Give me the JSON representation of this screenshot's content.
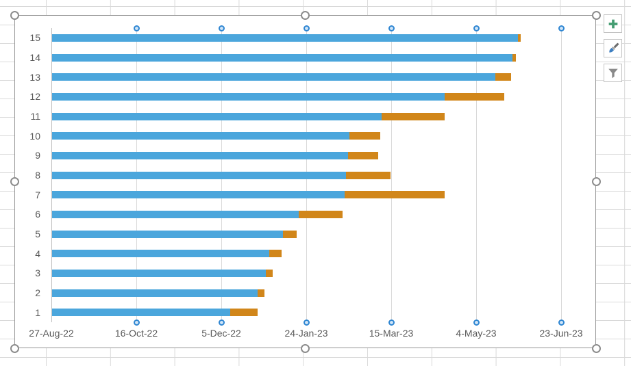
{
  "state": {
    "chart_selected": true,
    "gridlines_selected": true
  },
  "chart_tools": {
    "buttons": [
      {
        "id": "chart-elements",
        "icon": "plus-icon",
        "icon_color": "#459D72"
      },
      {
        "id": "chart-styles",
        "icon": "paintbrush-icon",
        "icon_color": "#6d6d6d"
      },
      {
        "id": "chart-filters",
        "icon": "funnel-icon",
        "icon_color": "#8a8a8a"
      }
    ]
  },
  "colors": {
    "bar_blue": "#4BA6DC",
    "bar_orange": "#D1861A",
    "axis_text": "#595959",
    "gridline": "#D9D9D9",
    "axis_line": "#BFBFBF",
    "gridline_handle_ring": "#2E86D2"
  },
  "chart_data": {
    "type": "bar",
    "orientation": "horizontal",
    "stacked": true,
    "title": "",
    "legend": "none",
    "gridlines": "vertical-major",
    "categories": [
      "1",
      "2",
      "3",
      "4",
      "5",
      "6",
      "7",
      "8",
      "9",
      "10",
      "11",
      "12",
      "13",
      "14",
      "15"
    ],
    "category_order": "category 1 at bottom, 15 at top",
    "series": [
      {
        "name": "offset-to-start (blue)",
        "color": "#4BA6DC",
        "unit": "days from 27-Aug-22",
        "values": [
          105,
          121,
          126,
          128,
          136,
          145,
          172,
          173,
          174,
          175,
          194,
          231,
          261,
          271,
          274
        ]
      },
      {
        "name": "duration (orange)",
        "color": "#D1861A",
        "unit": "days",
        "values": [
          16,
          4,
          4,
          7,
          8,
          26,
          59,
          26,
          18,
          18,
          37,
          35,
          9,
          2,
          2
        ]
      }
    ],
    "x_axis": {
      "type": "date",
      "tick_labels": [
        "27-Aug-22",
        "16-Oct-22",
        "5-Dec-22",
        "24-Jan-23",
        "15-Mar-23",
        "4-May-23",
        "23-Jun-23"
      ],
      "min_days": 0,
      "max_days": 300,
      "major_unit_days": 50
    },
    "y_axis": {
      "tick_labels_top_to_bottom": [
        "15",
        "14",
        "13",
        "12",
        "11",
        "10",
        "9",
        "8",
        "7",
        "6",
        "5",
        "4",
        "3",
        "2",
        "1"
      ]
    }
  }
}
